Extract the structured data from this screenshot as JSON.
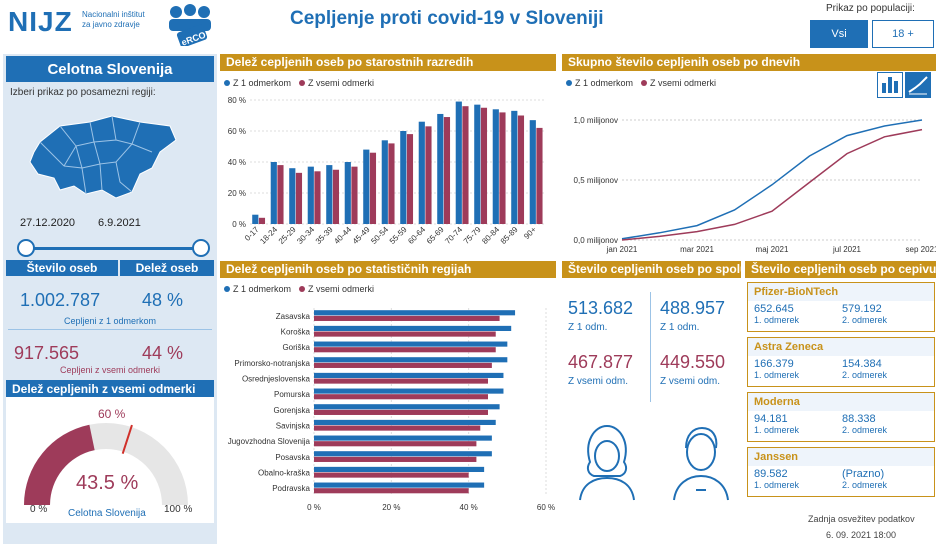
{
  "header": {
    "title": "Cepljenje proti covid-19 v Sloveniji",
    "logo_text": "NIJZ",
    "logo_sub": [
      "Nacionalni inštitut",
      "za javno zdravje"
    ],
    "erco_label": "eRCO",
    "population_label": "Prikaz po populaciji:",
    "pop_buttons": [
      "Vsi",
      "18 +"
    ]
  },
  "left": {
    "region_title": "Celotna Slovenija",
    "select_prompt": "Izberi prikaz po posamezni regiji:",
    "date_start": "27.12.2020",
    "date_end": "6.9.2021",
    "col_headers": [
      "Število oseb",
      "Delež oseb"
    ],
    "first_dose_count": "1.002.787",
    "first_dose_pct": "48 %",
    "first_dose_label": "Cepljeni z 1 odmerkom",
    "all_dose_count": "917.565",
    "all_dose_pct": "44 %",
    "all_dose_label": "Cepljeni z vsemi odmerki",
    "gauge_header": "Delež cepljenih z vsemi odmerki",
    "gauge_value": 43.5,
    "gauge_value_text": "43.5 %",
    "gauge_target_text": "60 %",
    "gauge_target": 60,
    "gauge_min_text": "0 %",
    "gauge_max_text": "100 %",
    "gauge_caption": "Celotna Slovenija"
  },
  "colors": {
    "blue": "#1f6fb5",
    "maroon": "#9e3b5a",
    "gold": "#c8921a",
    "panel": "#dde8f3"
  },
  "age_chart": {
    "header": "Delež cepljenih oseb po starostnih razredih",
    "legend": [
      "Z 1 odmerkom",
      "Z vsemi odmerki"
    ],
    "chart_data": {
      "type": "bar",
      "categories": [
        "0-17",
        "18-24",
        "25-29",
        "30-34",
        "35-39",
        "40-44",
        "45-49",
        "50-54",
        "55-59",
        "60-64",
        "65-69",
        "70-74",
        "75-79",
        "80-84",
        "85-89",
        "90+"
      ],
      "series": [
        {
          "name": "Z 1 odmerkom",
          "values": [
            6,
            40,
            36,
            37,
            38,
            40,
            48,
            54,
            60,
            66,
            71,
            79,
            77,
            74,
            73,
            67
          ]
        },
        {
          "name": "Z vsemi odmerki",
          "values": [
            4,
            38,
            33,
            34,
            35,
            37,
            46,
            52,
            58,
            63,
            69,
            76,
            75,
            72,
            70,
            62
          ]
        }
      ],
      "ylim": [
        0,
        80
      ],
      "yticks": [
        "0 %",
        "20 %",
        "40 %",
        "60 %",
        "80 %"
      ]
    }
  },
  "daily_chart": {
    "header": "Skupno število cepljenih oseb po dnevih",
    "legend": [
      "Z 1 odmerkom",
      "Z vsemi odmerki"
    ],
    "chart_data": {
      "type": "line",
      "x": [
        "jan 2021",
        "feb 2021",
        "mar 2021",
        "apr 2021",
        "maj 2021",
        "jun 2021",
        "jul 2021",
        "avg 2021",
        "sep 2021"
      ],
      "series": [
        {
          "name": "Z 1 odmerkom",
          "values": [
            0.01,
            0.06,
            0.12,
            0.25,
            0.46,
            0.7,
            0.87,
            0.95,
            1.0
          ]
        },
        {
          "name": "Z vsemi odmerki",
          "values": [
            0.0,
            0.03,
            0.07,
            0.13,
            0.24,
            0.48,
            0.72,
            0.86,
            0.92
          ]
        }
      ],
      "xticks": [
        "jan 2021",
        "mar 2021",
        "maj 2021",
        "jul 2021",
        "sep 2021"
      ],
      "yticks": [
        "0,0 milijonov",
        "0,5 milijonov",
        "1,0 milijonov"
      ],
      "ylim": [
        0,
        1.1
      ]
    }
  },
  "region_chart": {
    "header": "Delež cepljenih oseb po statističnih regijah",
    "legend": [
      "Z 1 odmerkom",
      "Z vsemi odmerki"
    ],
    "chart_data": {
      "type": "bar",
      "categories": [
        "Zasavska",
        "Koroška",
        "Goriška",
        "Primorsko-notranjska",
        "Osrednjeslovenska",
        "Pomurska",
        "Gorenjska",
        "Savinjska",
        "Jugovzhodna Slovenija",
        "Posavska",
        "Obalno-kraška",
        "Podravska"
      ],
      "series": [
        {
          "name": "Z 1 odmerkom",
          "values": [
            52,
            51,
            50,
            50,
            49,
            49,
            48,
            47,
            46,
            46,
            44,
            44
          ]
        },
        {
          "name": "Z vsemi odmerki",
          "values": [
            48,
            47,
            47,
            46,
            45,
            45,
            45,
            43,
            42,
            42,
            40,
            40
          ]
        }
      ],
      "xlim": [
        0,
        60
      ],
      "xticks": [
        "0 %",
        "20 %",
        "40 %",
        "60 %"
      ]
    }
  },
  "gender": {
    "header": "Število cepljenih oseb po spolu",
    "female_first": "513.682",
    "male_first": "488.957",
    "first_label": "Z 1 odm.",
    "female_all": "467.877",
    "male_all": "449.550",
    "all_label": "Z vsemi odm."
  },
  "vaccines": {
    "header": "Število cepljenih oseb po cepivu",
    "dose1_label": "1. odmerek",
    "dose2_label": "2. odmerek",
    "items": [
      {
        "name": "Pfizer-BioNTech",
        "dose1": "652.645",
        "dose2": "579.192"
      },
      {
        "name": "Astra Zeneca",
        "dose1": "166.379",
        "dose2": "154.384"
      },
      {
        "name": "Moderna",
        "dose1": "94.181",
        "dose2": "88.338"
      },
      {
        "name": "Janssen",
        "dose1": "89.582",
        "dose2": "(Prazno)"
      }
    ]
  },
  "footer": {
    "update_label": "Zadnja osvežitev podatkov",
    "update_time": "6. 09. 2021 18:00"
  }
}
